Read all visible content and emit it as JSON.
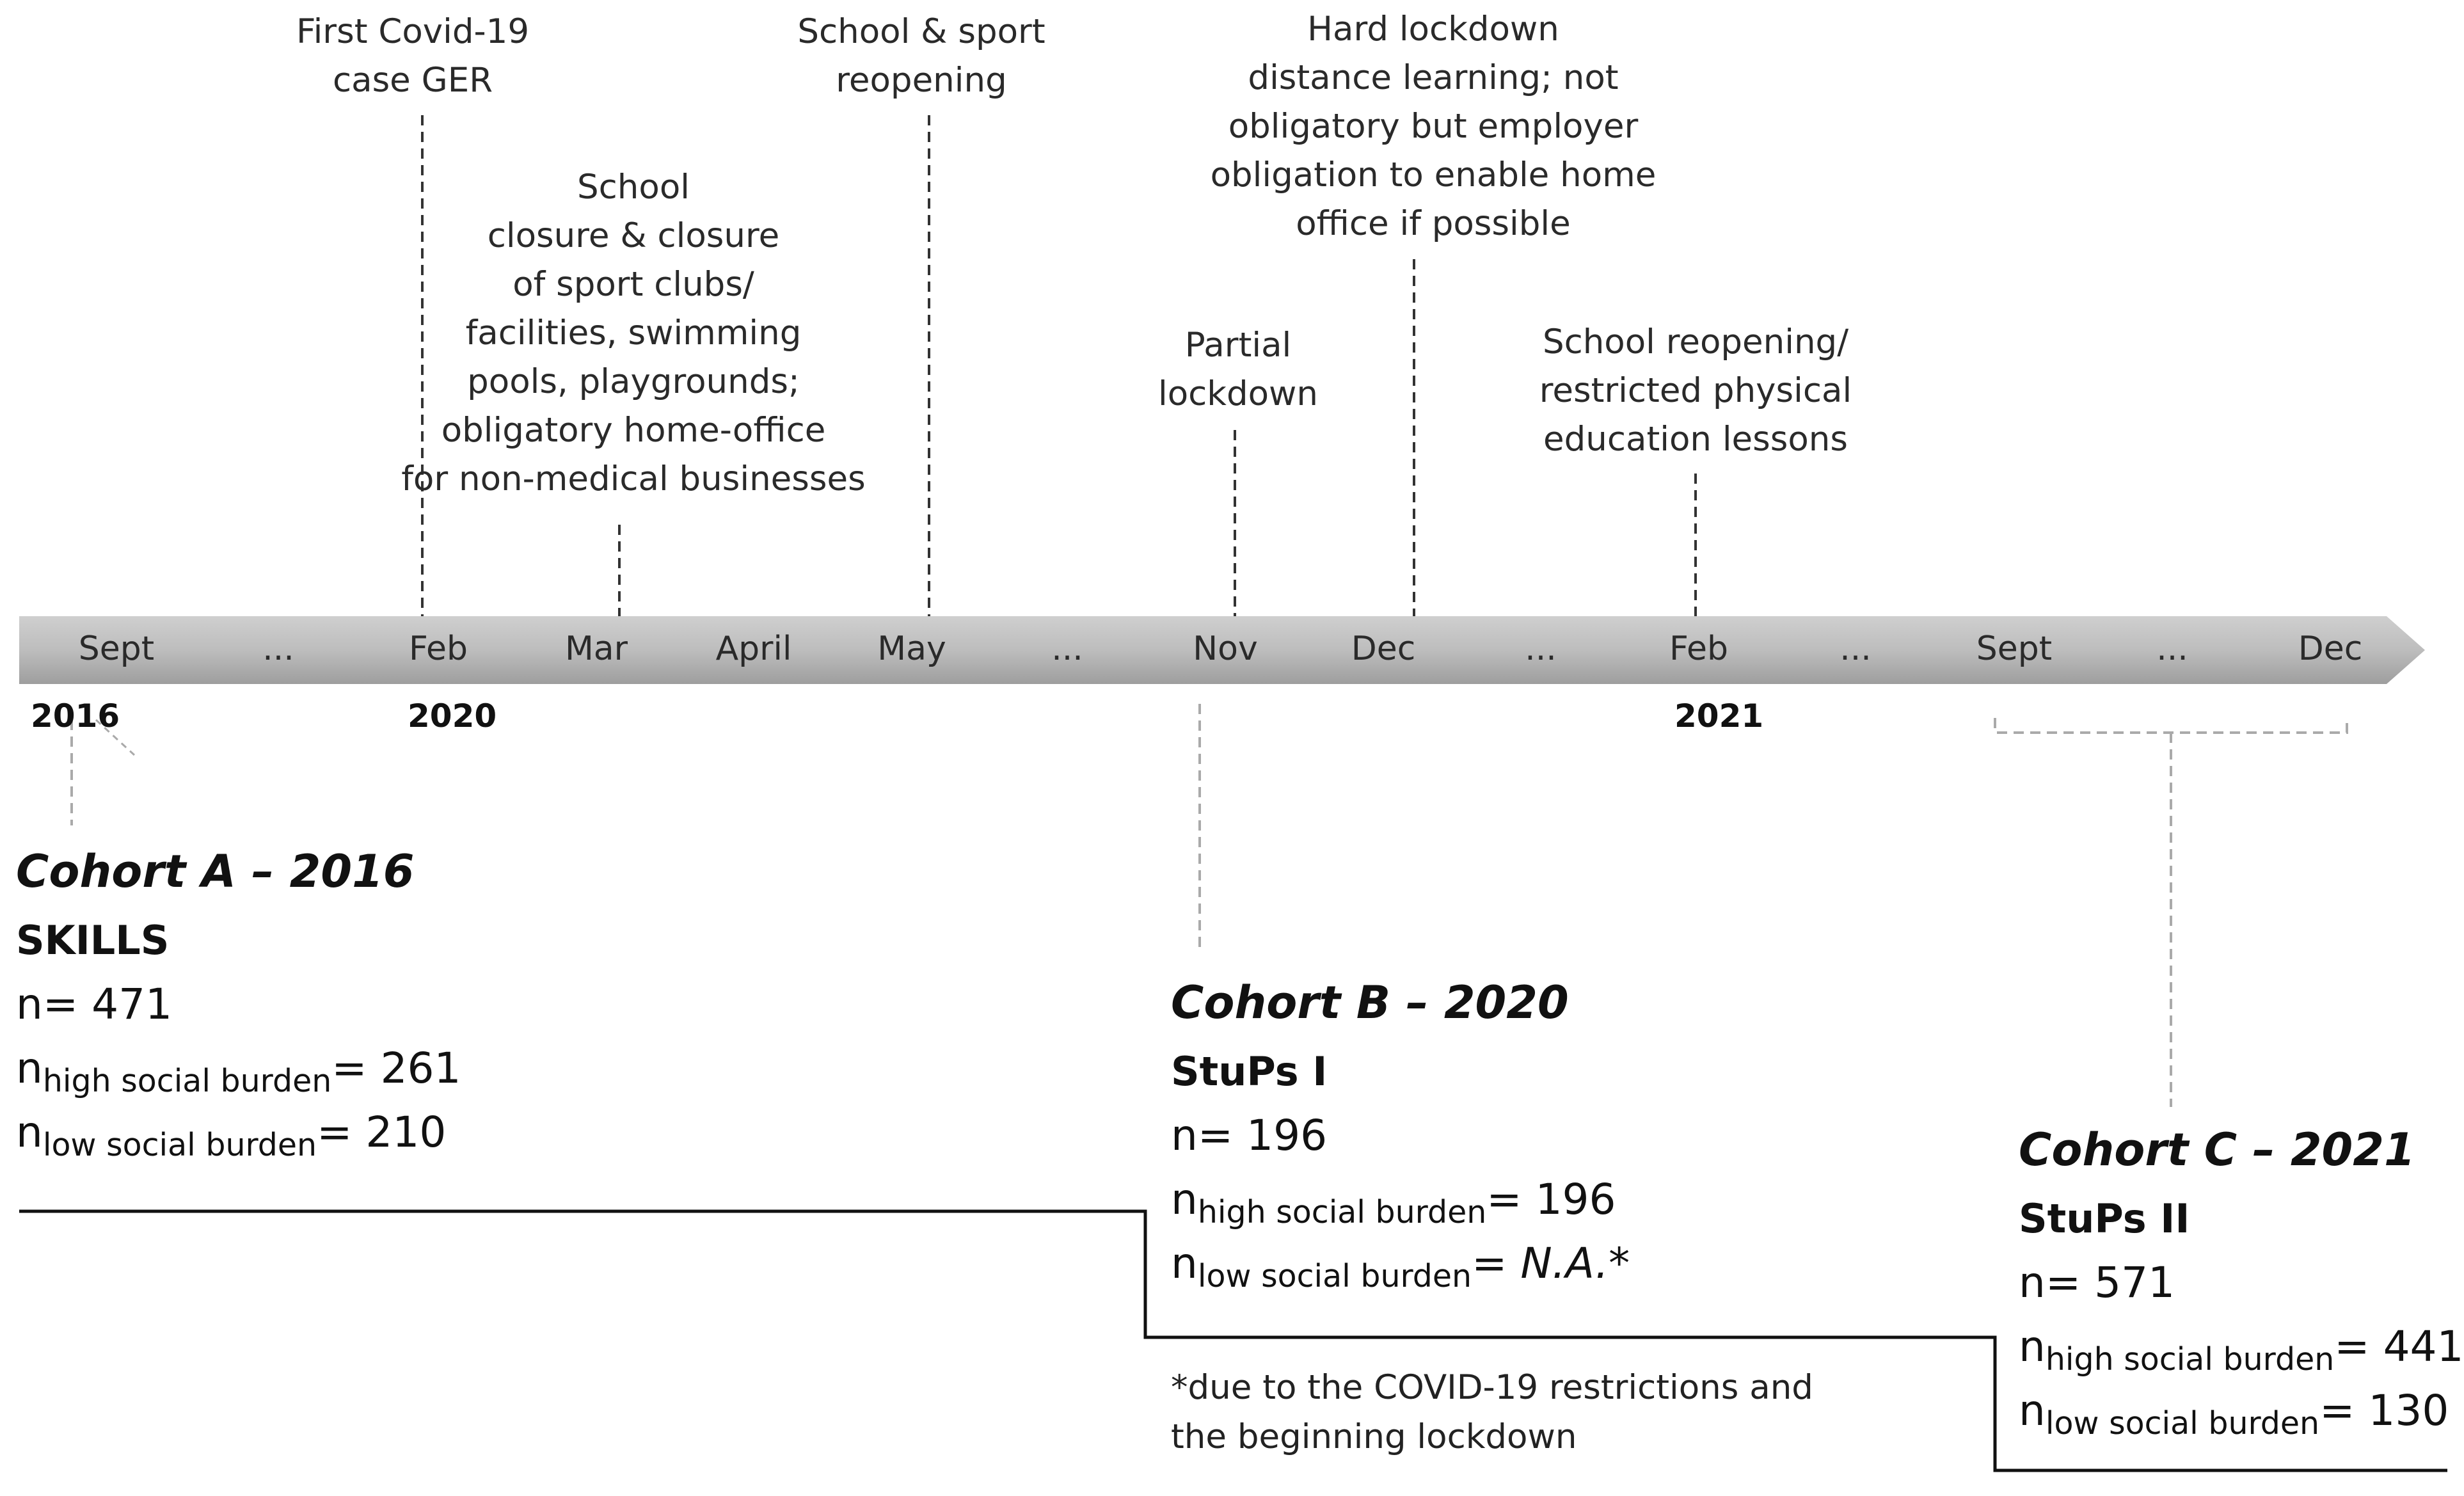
{
  "timeline": {
    "months": [
      "Sept",
      "...",
      "Feb",
      "Mar",
      "April",
      "May",
      "...",
      "Nov",
      "Dec",
      "...",
      "Feb",
      "...",
      "Sept",
      "...",
      "Dec"
    ],
    "years": [
      "2016",
      "2020",
      "2021"
    ]
  },
  "events": [
    {
      "lines": [
        "First Covid-19",
        "case GER"
      ]
    },
    {
      "lines": [
        "School",
        "closure & closure",
        "of sport clubs/",
        "facilities, swimming",
        "pools, playgrounds;",
        "obligatory home-office",
        "for non-medical businesses"
      ]
    },
    {
      "lines": [
        "School & sport",
        "reopening"
      ]
    },
    {
      "lines": [
        "Partial",
        "lockdown"
      ]
    },
    {
      "lines": [
        "Hard lockdown",
        "distance learning; not",
        "obligatory but employer",
        "obligation to enable home",
        "office if possible"
      ]
    },
    {
      "lines": [
        "School reopening/",
        "restricted physical",
        "education lessons"
      ]
    }
  ],
  "cohorts": [
    {
      "title": "Cohort A – 2016",
      "name": "SKILLS",
      "n_label": "n= ",
      "n": "471",
      "high_sub": "high social burden",
      "high": "261",
      "low_sub": "low social burden",
      "low": "210"
    },
    {
      "title": "Cohort B – 2020",
      "name": "StuPs I",
      "n_label": "n= ",
      "n": "196",
      "high_sub": "high social burden",
      "high": "196",
      "low_sub": "low social burden",
      "low": "N.A.*"
    },
    {
      "title": "Cohort C – 2021",
      "name": "StuPs II",
      "n_label": "n= ",
      "n": "571",
      "high_sub": "high social burden",
      "high": "441",
      "low_sub": "low social burden",
      "low": "130"
    }
  ],
  "stat_prefix": "n",
  "stat_eq": "= ",
  "footnote": [
    "*due to the COVID-19 restrictions and",
    "the beginning lockdown"
  ],
  "colors": {
    "axis_bar": "#b4b4b4",
    "axis_bar_edge": "#8a8a8a",
    "dashed": "#333333",
    "dashed_light": "#aaaaaa"
  }
}
